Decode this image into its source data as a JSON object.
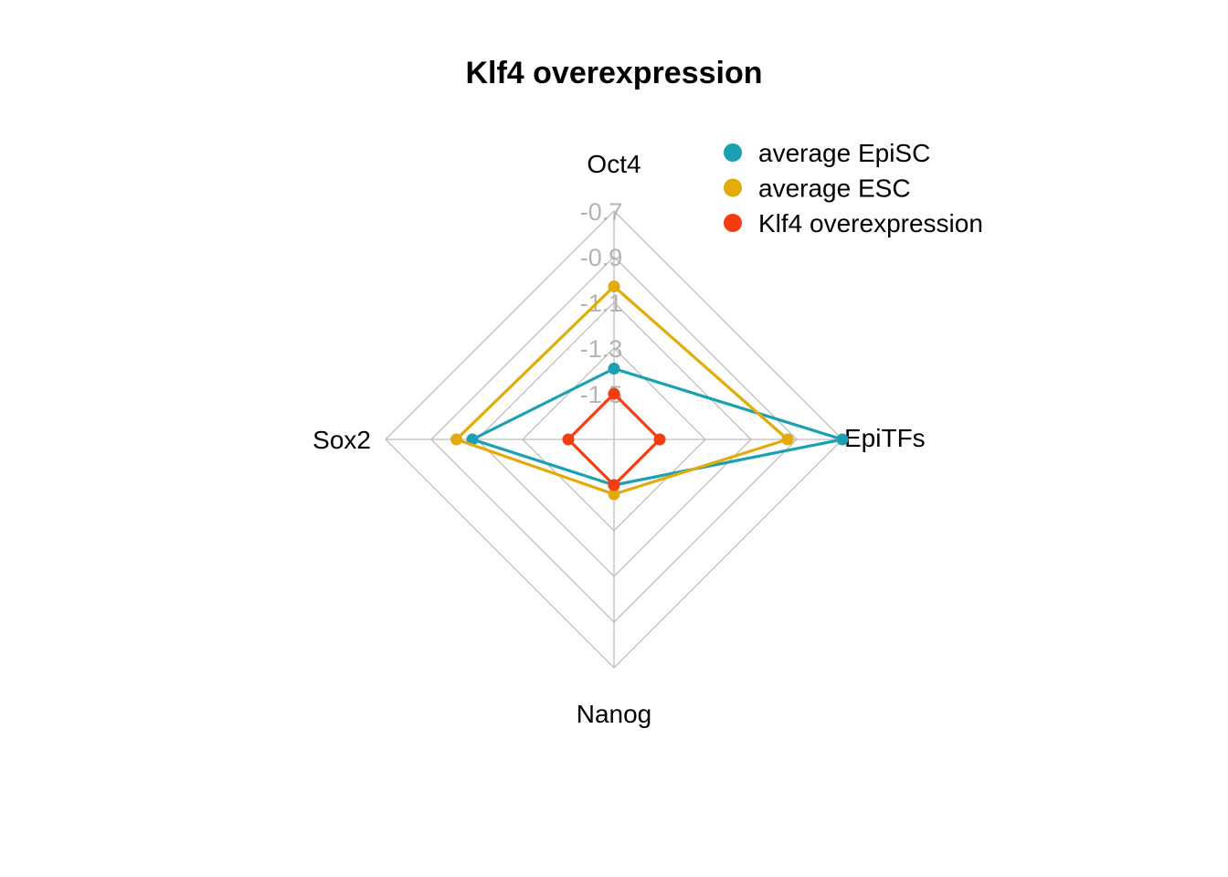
{
  "chart_data": {
    "type": "radar",
    "title": "Klf4 overexpression",
    "axes": [
      "Oct4",
      "EpiTFs",
      "Nanog",
      "Sox2"
    ],
    "ticks": [
      "-0.7",
      "-0.9",
      "-1.1",
      "-1.3",
      "-1.5"
    ],
    "range": [
      -1.7,
      -0.7
    ],
    "grid": true,
    "legend_position": "top-right",
    "series": [
      {
        "name": "average EpiSC",
        "color": "#1aa0b0",
        "values": [
          -1.39,
          -0.7,
          -1.5,
          -1.08
        ]
      },
      {
        "name": "average ESC",
        "color": "#e2ab0c",
        "values": [
          -1.03,
          -0.94,
          -1.46,
          -1.01
        ]
      },
      {
        "name": "Klf4 overexpression",
        "color": "#f53d10",
        "values": [
          -1.5,
          -1.5,
          -1.5,
          -1.5
        ]
      }
    ]
  }
}
